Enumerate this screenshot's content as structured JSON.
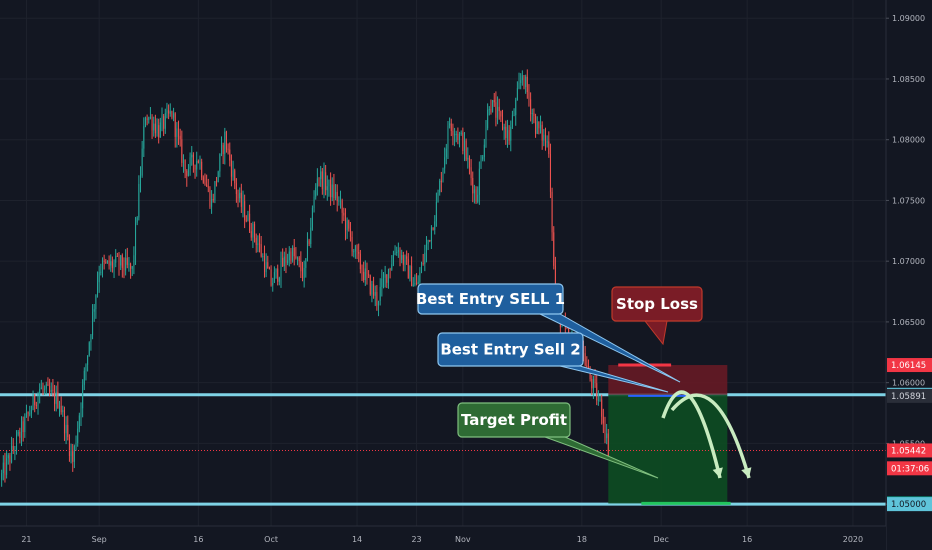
{
  "chart_data": {
    "type": "candlestick",
    "symbol_context": "EURUSD-style price chart",
    "x_axis": {
      "tick_labels": [
        "21",
        "Sep",
        "16",
        "Oct",
        "14",
        "23",
        "Nov",
        "18",
        "Dec",
        "16",
        "2020"
      ],
      "tick_days": [
        0,
        11,
        26,
        37,
        50,
        59,
        66,
        84,
        96,
        109,
        125
      ],
      "range_days": [
        -4,
        130
      ]
    },
    "y_axis": {
      "tick_labels": [
        "1.09000",
        "1.08500",
        "1.08000",
        "1.07500",
        "1.07000",
        "1.06500",
        "1.06000",
        "1.05500",
        "1.05000"
      ],
      "ticks": [
        1.09,
        1.085,
        1.08,
        1.075,
        1.07,
        1.065,
        1.06,
        1.055,
        1.05
      ],
      "range": [
        1.0482,
        1.0915
      ],
      "side": "right"
    },
    "price_path": {
      "description": "approximate close-price path used to generate the candles",
      "days": [
        -4,
        -2,
        2,
        5,
        7,
        8,
        11,
        14,
        16,
        18,
        20,
        22,
        24,
        26,
        28,
        30,
        32,
        35,
        37,
        40,
        42,
        44,
        47,
        50,
        53,
        56,
        59,
        62,
        64,
        66,
        68,
        70,
        73,
        75,
        77,
        79,
        80,
        82,
        84,
        85,
        87,
        88
      ],
      "values": [
        1.052,
        1.0545,
        1.0595,
        1.0585,
        1.0535,
        1.0575,
        1.0695,
        1.0698,
        1.0692,
        1.0822,
        1.0808,
        1.0822,
        1.0775,
        1.0785,
        1.0748,
        1.0802,
        1.0752,
        1.0715,
        1.0682,
        1.0708,
        1.0688,
        1.0772,
        1.0752,
        1.0702,
        1.0668,
        1.0712,
        1.0678,
        1.0745,
        1.0815,
        1.0798,
        1.0752,
        1.0832,
        1.0802,
        1.0855,
        1.0812,
        1.0795,
        1.0662,
        1.0635,
        1.0628,
        1.0607,
        1.0578,
        1.0545
      ]
    },
    "price_tags": [
      {
        "label": "1.06145",
        "value": 1.06145,
        "color": "#f23645",
        "text_color": "#ffffff"
      },
      {
        "label": "1.05900",
        "value": 1.059,
        "color": "#5fc4da",
        "text_color": "#131722"
      },
      {
        "label": "1.05891",
        "value": 1.05891,
        "color": "#2a2e39",
        "text_color": "#d1d4dc"
      },
      {
        "label": "1.05442",
        "value": 1.05442,
        "color": "#f23645",
        "text_color": "#ffffff"
      },
      {
        "label": "01:37:06",
        "value": 1.05295,
        "color": "#f23645",
        "text_color": "#ffffff"
      },
      {
        "label": "1.05006",
        "value": 1.05006,
        "color": "#089981",
        "text_color": "#ffffff"
      },
      {
        "label": "1.05000",
        "value": 1.05,
        "color": "#5fc4da",
        "text_color": "#131722"
      }
    ],
    "support_resistance_lines": [
      {
        "value": 1.059,
        "color": "#7fd3e6"
      },
      {
        "value": 1.05,
        "color": "#7fd3e6"
      }
    ],
    "current_price_line": {
      "value": 1.05442,
      "color": "#f23645"
    },
    "position": {
      "type": "short",
      "start_day": 88,
      "end_day": 106,
      "entry": 1.059,
      "stop_loss": 1.06145,
      "target": 1.05006,
      "entry2": 1.05891,
      "entry2_line_end_day": 101,
      "risk_color": "#6b1a24",
      "reward_color": "#0d4d22"
    },
    "callouts": [
      {
        "id": "stop-loss",
        "text": "Stop Loss",
        "fill": "#7a1c26",
        "stroke": "#c0392b"
      },
      {
        "id": "entry-1",
        "text": "Best Entry SELL 1",
        "fill": "#1f5f9e",
        "stroke": "#8ec7f0"
      },
      {
        "id": "entry-2",
        "text": "Best Entry Sell 2",
        "fill": "#1f5f9e",
        "stroke": "#8ec7f0"
      },
      {
        "id": "target-profit",
        "text": "Target Profit",
        "fill": "#2e6b34",
        "stroke": "#7fbf7f"
      }
    ],
    "colors": {
      "background": "#131722",
      "grid": "#1e222d",
      "up_candle": "#26a69a",
      "down_candle": "#ef5350",
      "arrows": "#c8ebc0"
    },
    "grid": true
  }
}
